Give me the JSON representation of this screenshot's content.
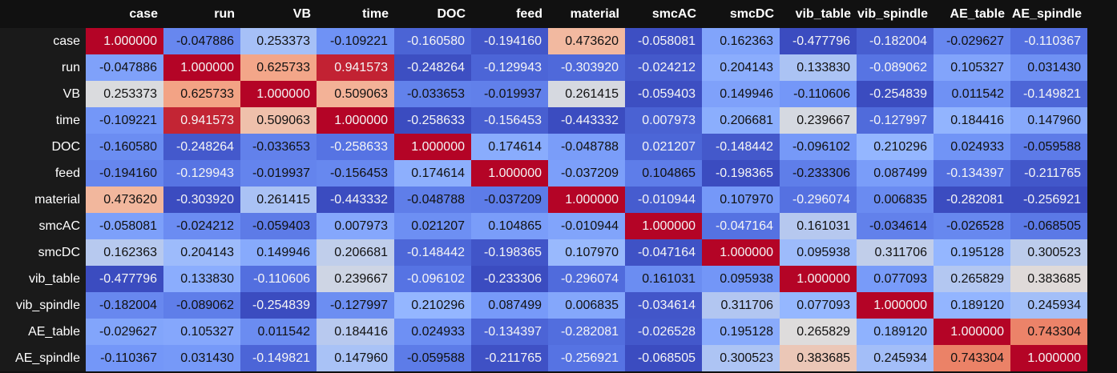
{
  "chart_data": {
    "type": "heatmap",
    "colormap": "coolwarm",
    "value_range": [
      -0.477796,
      1.0
    ],
    "columns": [
      "case",
      "run",
      "VB",
      "time",
      "DOC",
      "feed",
      "material",
      "smcAC",
      "smcDC",
      "vib_table",
      "vib_spindle",
      "AE_table",
      "AE_spindle"
    ],
    "rows": [
      {
        "label": "case",
        "values": [
          "1.000000",
          "-0.047886",
          "0.253373",
          "-0.109221",
          "-0.160580",
          "-0.194160",
          "0.473620",
          "-0.058081",
          "0.162363",
          "-0.477796",
          "-0.182004",
          "-0.029627",
          "-0.110367"
        ]
      },
      {
        "label": "run",
        "values": [
          "-0.047886",
          "1.000000",
          "0.625733",
          "0.941573",
          "-0.248264",
          "-0.129943",
          "-0.303920",
          "-0.024212",
          "0.204143",
          "0.133830",
          "-0.089062",
          "0.105327",
          "0.031430"
        ]
      },
      {
        "label": "VB",
        "values": [
          "0.253373",
          "0.625733",
          "1.000000",
          "0.509063",
          "-0.033653",
          "-0.019937",
          "0.261415",
          "-0.059403",
          "0.149946",
          "-0.110606",
          "-0.254839",
          "0.011542",
          "-0.149821"
        ]
      },
      {
        "label": "time",
        "values": [
          "-0.109221",
          "0.941573",
          "0.509063",
          "1.000000",
          "-0.258633",
          "-0.156453",
          "-0.443332",
          "0.007973",
          "0.206681",
          "0.239667",
          "-0.127997",
          "0.184416",
          "0.147960"
        ]
      },
      {
        "label": "DOC",
        "values": [
          "-0.160580",
          "-0.248264",
          "-0.033653",
          "-0.258633",
          "1.000000",
          "0.174614",
          "-0.048788",
          "0.021207",
          "-0.148442",
          "-0.096102",
          "0.210296",
          "0.024933",
          "-0.059588"
        ]
      },
      {
        "label": "feed",
        "values": [
          "-0.194160",
          "-0.129943",
          "-0.019937",
          "-0.156453",
          "0.174614",
          "1.000000",
          "-0.037209",
          "0.104865",
          "-0.198365",
          "-0.233306",
          "0.087499",
          "-0.134397",
          "-0.211765"
        ]
      },
      {
        "label": "material",
        "values": [
          "0.473620",
          "-0.303920",
          "0.261415",
          "-0.443332",
          "-0.048788",
          "-0.037209",
          "1.000000",
          "-0.010944",
          "0.107970",
          "-0.296074",
          "0.006835",
          "-0.282081",
          "-0.256921"
        ]
      },
      {
        "label": "smcAC",
        "values": [
          "-0.058081",
          "-0.024212",
          "-0.059403",
          "0.007973",
          "0.021207",
          "0.104865",
          "-0.010944",
          "1.000000",
          "-0.047164",
          "0.161031",
          "-0.034614",
          "-0.026528",
          "-0.068505"
        ]
      },
      {
        "label": "smcDC",
        "values": [
          "0.162363",
          "0.204143",
          "0.149946",
          "0.206681",
          "-0.148442",
          "-0.198365",
          "0.107970",
          "-0.047164",
          "1.000000",
          "0.095938",
          "0.311706",
          "0.195128",
          "0.300523"
        ]
      },
      {
        "label": "vib_table",
        "values": [
          "-0.477796",
          "0.133830",
          "-0.110606",
          "0.239667",
          "-0.096102",
          "-0.233306",
          "-0.296074",
          "0.161031",
          "0.095938",
          "1.000000",
          "0.077093",
          "0.265829",
          "0.383685"
        ]
      },
      {
        "label": "vib_spindle",
        "values": [
          "-0.182004",
          "-0.089062",
          "-0.254839",
          "-0.127997",
          "0.210296",
          "0.087499",
          "0.006835",
          "-0.034614",
          "0.311706",
          "0.077093",
          "1.000000",
          "0.189120",
          "0.245934"
        ]
      },
      {
        "label": "AE_table",
        "values": [
          "-0.029627",
          "0.105327",
          "0.011542",
          "0.184416",
          "0.024933",
          "-0.134397",
          "-0.282081",
          "-0.026528",
          "0.195128",
          "0.265829",
          "0.189120",
          "1.000000",
          "0.743304"
        ]
      },
      {
        "label": "AE_spindle",
        "values": [
          "-0.110367",
          "0.031430",
          "-0.149821",
          "0.147960",
          "-0.059588",
          "-0.211765",
          "-0.256921",
          "-0.068505",
          "0.300523",
          "0.383685",
          "0.245934",
          "0.743304",
          "1.000000"
        ]
      }
    ]
  }
}
